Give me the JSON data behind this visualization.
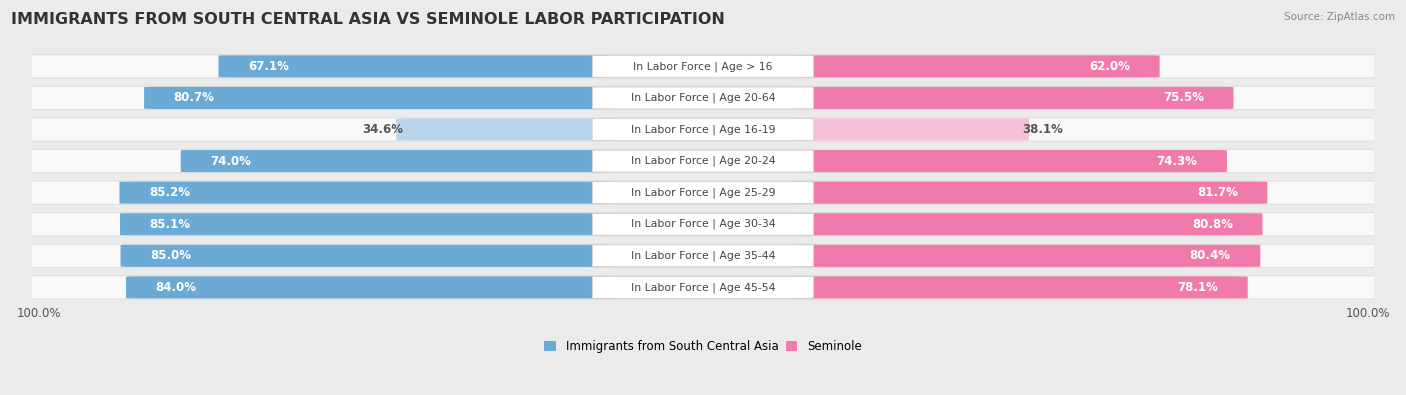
{
  "title": "IMMIGRANTS FROM SOUTH CENTRAL ASIA VS SEMINOLE LABOR PARTICIPATION",
  "source": "Source: ZipAtlas.com",
  "categories": [
    "In Labor Force | Age > 16",
    "In Labor Force | Age 20-64",
    "In Labor Force | Age 16-19",
    "In Labor Force | Age 20-24",
    "In Labor Force | Age 25-29",
    "In Labor Force | Age 30-34",
    "In Labor Force | Age 35-44",
    "In Labor Force | Age 45-54"
  ],
  "left_values": [
    67.1,
    80.7,
    34.6,
    74.0,
    85.2,
    85.1,
    85.0,
    84.0
  ],
  "right_values": [
    62.0,
    75.5,
    38.1,
    74.3,
    81.7,
    80.8,
    80.4,
    78.1
  ],
  "left_color_strong": "#6aaad4",
  "left_color_light": "#b8d4ea",
  "right_color_strong": "#f07aab",
  "right_color_light": "#f5c0d8",
  "label_left": "Immigrants from South Central Asia",
  "label_right": "Seminole",
  "max_val": 100.0,
  "bg_color": "#ebebeb",
  "row_bg": "#f9f9f9",
  "row_border": "#dddddd",
  "title_fontsize": 11.5,
  "bar_label_fontsize": 8.5,
  "category_fontsize": 7.8,
  "axis_label_fontsize": 8.5,
  "legend_fontsize": 8.5,
  "light_rows": [
    2
  ]
}
